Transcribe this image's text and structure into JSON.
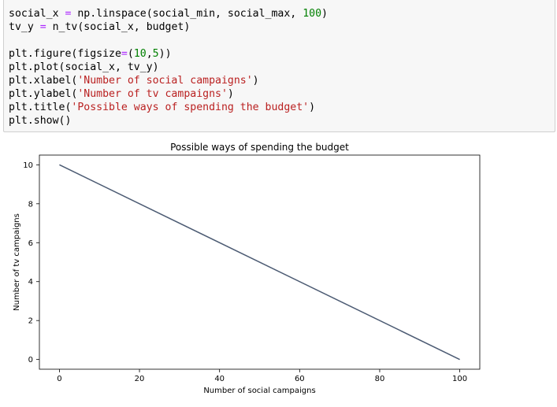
{
  "code_cell": {
    "lines": [
      [
        {
          "t": "social_x ",
          "c": "plain"
        },
        {
          "t": "=",
          "c": "op"
        },
        {
          "t": " np.linspace(social_min, social_max, ",
          "c": "plain"
        },
        {
          "t": "100",
          "c": "num"
        },
        {
          "t": ")",
          "c": "plain"
        }
      ],
      [
        {
          "t": "tv_y ",
          "c": "plain"
        },
        {
          "t": "=",
          "c": "op"
        },
        {
          "t": " n_tv(social_x, budget)",
          "c": "plain"
        }
      ],
      [],
      [
        {
          "t": "plt.figure(figsize",
          "c": "plain"
        },
        {
          "t": "=",
          "c": "op"
        },
        {
          "t": "(",
          "c": "plain"
        },
        {
          "t": "10",
          "c": "num"
        },
        {
          "t": ",",
          "c": "plain"
        },
        {
          "t": "5",
          "c": "num"
        },
        {
          "t": "))",
          "c": "plain"
        }
      ],
      [
        {
          "t": "plt.plot(social_x, tv_y)",
          "c": "plain"
        }
      ],
      [
        {
          "t": "plt.xlabel(",
          "c": "plain"
        },
        {
          "t": "'Number of social campaigns'",
          "c": "str"
        },
        {
          "t": ")",
          "c": "plain"
        }
      ],
      [
        {
          "t": "plt.ylabel(",
          "c": "plain"
        },
        {
          "t": "'Number of tv campaigns'",
          "c": "str"
        },
        {
          "t": ")",
          "c": "plain"
        }
      ],
      [
        {
          "t": "plt.title(",
          "c": "plain"
        },
        {
          "t": "'Possible ways of spending the budget'",
          "c": "str"
        },
        {
          "t": ")",
          "c": "plain"
        }
      ],
      [
        {
          "t": "plt.show()",
          "c": "plain"
        }
      ]
    ],
    "colors": {
      "op": "#aa22ff",
      "num": "#008000",
      "str": "#ba2121",
      "plain": "#000000"
    }
  },
  "chart_data": {
    "type": "line",
    "title": "Possible ways of spending the budget",
    "xlabel": "Number of social campaigns",
    "ylabel": "Number of tv campaigns",
    "xlim": [
      -5,
      105
    ],
    "ylim": [
      -0.5,
      10.5
    ],
    "xticks": [
      0,
      20,
      40,
      60,
      80,
      100
    ],
    "yticks": [
      0,
      2,
      4,
      6,
      8,
      10
    ],
    "xtick_labels": [
      "0",
      "20",
      "40",
      "60",
      "80",
      "100"
    ],
    "ytick_labels": [
      "0",
      "2",
      "4",
      "6",
      "8",
      "10"
    ],
    "grid": false,
    "series": [
      {
        "x": [
          0,
          100
        ],
        "y": [
          10,
          0
        ],
        "color": "#4c5b73"
      }
    ]
  }
}
